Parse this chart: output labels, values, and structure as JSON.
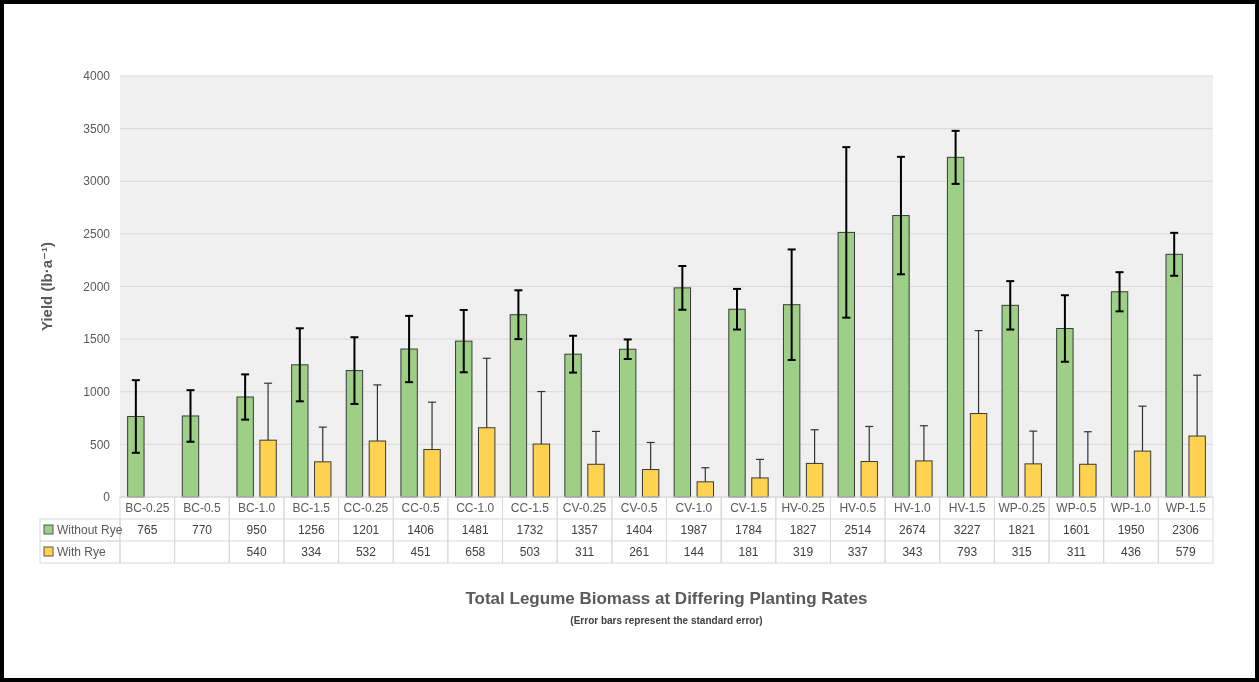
{
  "chart_data": {
    "type": "bar",
    "title": "Total Legume Biomass at Differing Planting Rates",
    "ylabel": "Yield (lb·a⁻¹)",
    "annotations": [
      "(Error bars represent the standard error)"
    ],
    "categories": [
      "BC-0.25",
      "BC-0.5",
      "BC-1.0",
      "BC-1.5",
      "CC-0.25",
      "CC-0.5",
      "CC-1.0",
      "CC-1.5",
      "CV-0.25",
      "CV-0.5",
      "CV-1.0",
      "CV-1.5",
      "HV-0.25",
      "HV-0.5",
      "HV-1.0",
      "HV-1.5",
      "WP-0.25",
      "WP-0.5",
      "WP-1.0",
      "WP-1.5"
    ],
    "series": [
      {
        "name": "Without Rye",
        "color": "#9dcf86",
        "values": [
          765,
          770,
          950,
          1256,
          1201,
          1406,
          1481,
          1732,
          1357,
          1404,
          1987,
          1784,
          1827,
          2514,
          2674,
          3227,
          1821,
          1601,
          1950,
          2306
        ],
        "errors": [
          345,
          245,
          215,
          347,
          317,
          315,
          296,
          232,
          175,
          93,
          208,
          193,
          525,
          810,
          558,
          252,
          230,
          316,
          186,
          204
        ]
      },
      {
        "name": "With Rye",
        "color": "#ffd34f",
        "values": [
          null,
          null,
          540,
          334,
          532,
          451,
          658,
          503,
          311,
          261,
          144,
          181,
          319,
          337,
          343,
          793,
          315,
          311,
          436,
          579
        ],
        "errors": [
          null,
          null,
          [
            540,
            1081
          ],
          [
            334,
            664
          ],
          [
            532,
            1065
          ],
          [
            451,
            901
          ],
          [
            658,
            1318
          ],
          [
            503,
            1002
          ],
          [
            311,
            623
          ],
          [
            261,
            518
          ],
          [
            144,
            278
          ],
          [
            181,
            357
          ],
          [
            319,
            639
          ],
          [
            337,
            670
          ],
          [
            343,
            677
          ],
          [
            793,
            1581
          ],
          [
            315,
            626
          ],
          [
            311,
            620
          ],
          [
            436,
            863
          ],
          [
            579,
            1157
          ]
        ]
      }
    ],
    "ylim": [
      0,
      4000
    ],
    "yticks": [
      0,
      500,
      1000,
      1500,
      2000,
      2500,
      3000,
      3500,
      4000
    ],
    "grid": "y",
    "data_labels": true,
    "legend": "bottom"
  }
}
